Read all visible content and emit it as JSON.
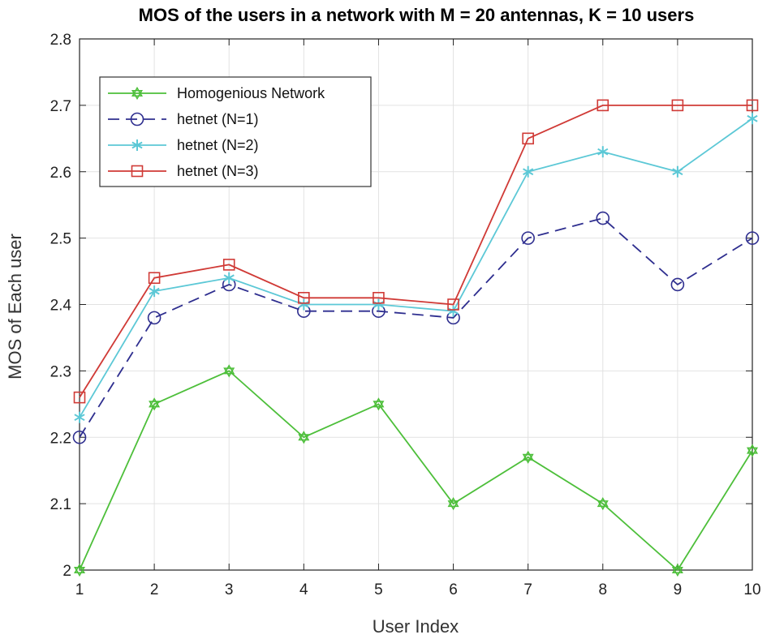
{
  "chart_data": {
    "type": "line",
    "title": "MOS of the users in a network with M = 20 antennas, K = 10 users",
    "xlabel": "User Index",
    "ylabel": "MOS of Each user",
    "x": [
      1,
      2,
      3,
      4,
      5,
      6,
      7,
      8,
      9,
      10
    ],
    "xlim": [
      1,
      10
    ],
    "ylim": [
      2,
      2.8
    ],
    "xticks": [
      1,
      2,
      3,
      4,
      5,
      6,
      7,
      8,
      9,
      10
    ],
    "yticks": [
      2,
      2.1,
      2.2,
      2.3,
      2.4,
      2.5,
      2.6,
      2.7,
      2.8
    ],
    "xtick_labels": [
      "1",
      "2",
      "3",
      "4",
      "5",
      "6",
      "7",
      "8",
      "9",
      "10"
    ],
    "ytick_labels": [
      "2",
      "2.1",
      "2.2",
      "2.3",
      "2.4",
      "2.5",
      "2.6",
      "2.7",
      "2.8"
    ],
    "grid": true,
    "legend_position": "top-left",
    "series": [
      {
        "name": "Homogenious Network",
        "color": "#4dbf3a",
        "marker": "hexagram",
        "line_style": "solid",
        "values": [
          2.0,
          2.25,
          2.3,
          2.2,
          2.25,
          2.1,
          2.17,
          2.1,
          2.0,
          2.18
        ]
      },
      {
        "name": "hetnet (N=1)",
        "color": "#2e2e8f",
        "marker": "circle",
        "line_style": "dashed",
        "values": [
          2.2,
          2.38,
          2.43,
          2.39,
          2.39,
          2.38,
          2.5,
          2.53,
          2.43,
          2.5
        ]
      },
      {
        "name": "hetnet (N=2)",
        "color": "#5cc8d6",
        "marker": "asterisk",
        "line_style": "solid",
        "values": [
          2.23,
          2.42,
          2.44,
          2.4,
          2.4,
          2.39,
          2.6,
          2.63,
          2.6,
          2.68
        ]
      },
      {
        "name": "hetnet (N=3)",
        "color": "#d03a36",
        "marker": "square",
        "line_style": "solid",
        "values": [
          2.26,
          2.44,
          2.46,
          2.41,
          2.41,
          2.4,
          2.65,
          2.7,
          2.7,
          2.7
        ]
      }
    ]
  }
}
